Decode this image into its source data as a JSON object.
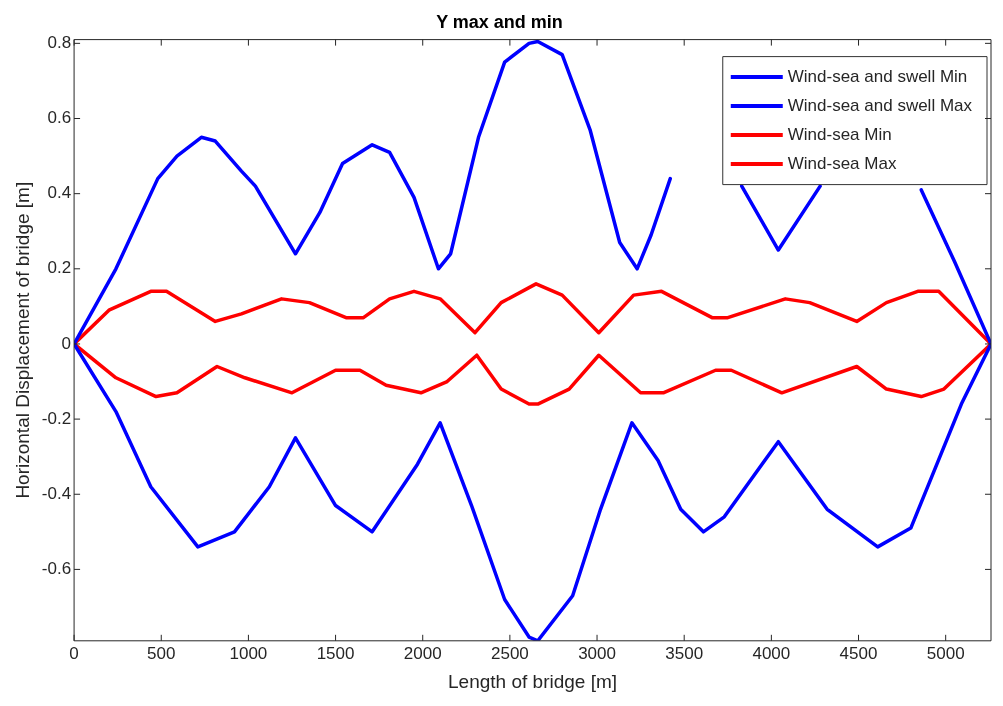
{
  "chart_data": {
    "type": "line",
    "title": "Y max and min",
    "xlabel": "Length of bridge [m]",
    "ylabel": "Horizontal Displacement of bridge [m]",
    "xlim": [
      0,
      5260
    ],
    "xticks": [
      0,
      500,
      1000,
      1500,
      2000,
      2500,
      3000,
      3500,
      4000,
      4500,
      5000
    ],
    "ylim": [
      -0.79,
      0.81
    ],
    "yticks": [
      -0.6,
      -0.4,
      -0.2,
      0,
      0.2,
      0.4,
      0.6,
      0.8
    ],
    "grid": false,
    "legend": "top right",
    "marker": "none",
    "line_style": "solid",
    "series": [
      {
        "name": "Wind-sea and swell Min",
        "color": "#0000ff",
        "x": [
          0,
          240,
          440,
          710,
          920,
          1120,
          1270,
          1500,
          1710,
          1970,
          2100,
          2280,
          2470,
          2610,
          2660,
          2860,
          3020,
          3200,
          3350,
          3480,
          3610,
          3730,
          4040,
          4320,
          4610,
          4800,
          5090,
          5260
        ],
        "values": [
          0,
          -0.18,
          -0.38,
          -0.54,
          -0.5,
          -0.38,
          -0.25,
          -0.43,
          -0.5,
          -0.32,
          -0.21,
          -0.43,
          -0.68,
          -0.78,
          -0.79,
          -0.67,
          -0.44,
          -0.21,
          -0.31,
          -0.44,
          -0.5,
          -0.46,
          -0.26,
          -0.44,
          -0.54,
          -0.49,
          -0.16,
          0
        ]
      },
      {
        "name": "Wind-sea and swell Max",
        "color": "#0000ff",
        "x": [
          0,
          240,
          480,
          590,
          730,
          810,
          960,
          1040,
          1270,
          1410,
          1540,
          1710,
          1810,
          1950,
          2090,
          2160,
          2320,
          2470,
          2610,
          2660,
          2800,
          2960,
          3130,
          3230,
          3310,
          3420,
          3600,
          3830,
          4040,
          4280,
          4550,
          4860,
          5050,
          5260
        ],
        "values": [
          0,
          0.2,
          0.44,
          0.5,
          0.55,
          0.54,
          0.46,
          0.42,
          0.24,
          0.35,
          0.48,
          0.53,
          0.51,
          0.39,
          0.2,
          0.24,
          0.55,
          0.75,
          0.8,
          0.805,
          0.77,
          0.57,
          0.27,
          0.2,
          0.29,
          0.44,
          null,
          0.42,
          0.25,
          0.42,
          null,
          0.41,
          0.22,
          0
        ]
      },
      {
        "name": "Wind-sea Min",
        "color": "#ff0000",
        "x": [
          0,
          240,
          470,
          590,
          820,
          980,
          1250,
          1500,
          1640,
          1790,
          1990,
          2140,
          2310,
          2450,
          2610,
          2660,
          2840,
          3010,
          3250,
          3380,
          3680,
          3770,
          4060,
          4490,
          4660,
          4860,
          4990,
          5260
        ],
        "values": [
          0,
          -0.09,
          -0.14,
          -0.13,
          -0.06,
          -0.09,
          -0.13,
          -0.07,
          -0.07,
          -0.11,
          -0.13,
          -0.1,
          -0.03,
          -0.12,
          -0.16,
          -0.16,
          -0.12,
          -0.03,
          -0.13,
          -0.13,
          -0.07,
          -0.07,
          -0.13,
          -0.06,
          -0.12,
          -0.14,
          -0.12,
          0
        ]
      },
      {
        "name": "Wind-sea Max",
        "color": "#ff0000",
        "x": [
          0,
          200,
          440,
          530,
          810,
          960,
          1190,
          1350,
          1560,
          1660,
          1810,
          1950,
          2100,
          2300,
          2450,
          2610,
          2650,
          2800,
          3010,
          3210,
          3370,
          3660,
          3750,
          4080,
          4220,
          4490,
          4660,
          4840,
          4960,
          5260
        ],
        "values": [
          0,
          0.09,
          0.14,
          0.14,
          0.06,
          0.08,
          0.12,
          0.11,
          0.07,
          0.07,
          0.12,
          0.14,
          0.12,
          0.03,
          0.11,
          0.15,
          0.16,
          0.13,
          0.03,
          0.13,
          0.14,
          0.07,
          0.07,
          0.12,
          0.11,
          0.06,
          0.11,
          0.14,
          0.14,
          0
        ]
      }
    ]
  }
}
